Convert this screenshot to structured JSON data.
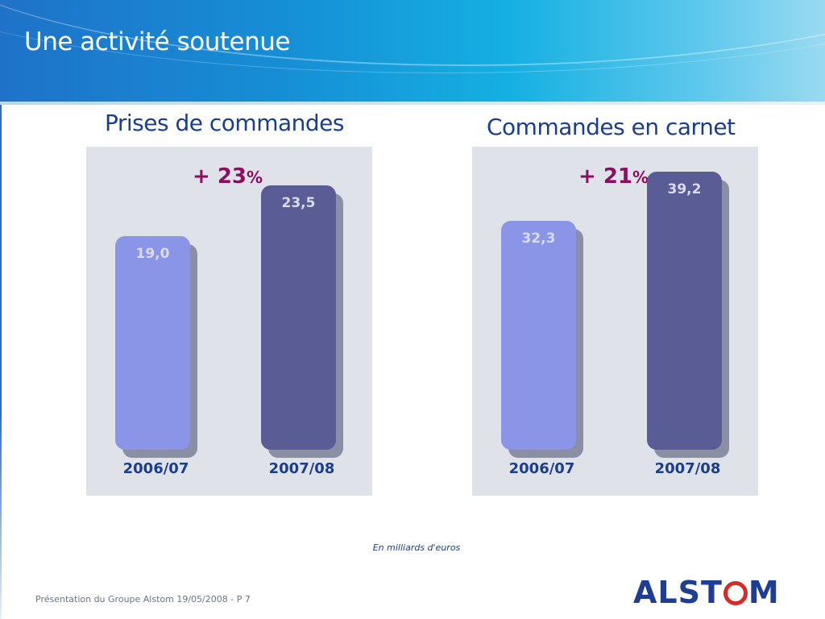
{
  "slide": {
    "title": "Une activité soutenue",
    "unit_note": "En milliards d'euros",
    "footer": "Présentation du Groupe Alstom 19/05/2008 - P 7",
    "logo_text": "ALSTOM"
  },
  "colors": {
    "bar_light": "#8a95e8",
    "bar_dark": "#5a5c96",
    "bar_shadow": "#8b8fa3",
    "panel_bg": "#dfe3e9",
    "growth": "#8c0f5e",
    "title_blue": "#1a3d8f",
    "logo_red": "#d42b2b"
  },
  "chart_data": [
    {
      "type": "bar",
      "title": "Prises de commandes",
      "categories": [
        "2006/07",
        "2007/08"
      ],
      "values": [
        19.0,
        23.5
      ],
      "value_labels": [
        "19,0",
        "23,5"
      ],
      "growth_label": "+ 23",
      "growth_unit": "%",
      "ylim": [
        0,
        25.1
      ],
      "grid": false,
      "legend": "none"
    },
    {
      "type": "bar",
      "title": "Commandes en carnet",
      "categories": [
        "2006/07",
        "2007/08"
      ],
      "values": [
        32.3,
        39.2
      ],
      "value_labels": [
        "32,3",
        "39,2"
      ],
      "growth_label": "+ 21",
      "growth_unit": "%",
      "ylim": [
        0,
        39.8
      ],
      "grid": false,
      "legend": "none"
    }
  ]
}
